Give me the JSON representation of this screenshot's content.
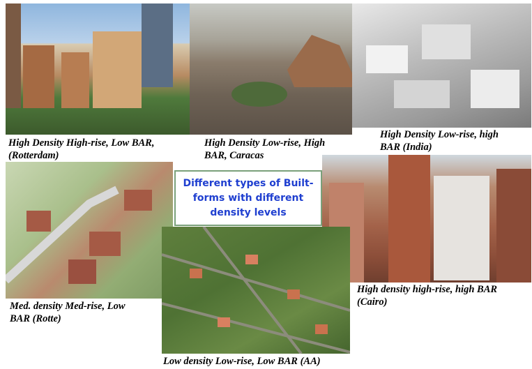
{
  "photos": [
    {
      "caption": [
        "High Density High-rise, Low BAR,",
        "(Rotterdam)"
      ]
    },
    {
      "caption": [
        "High Density Low-rise, High",
        "BAR, Caracas"
      ]
    },
    {
      "caption": [
        "High Density Low-rise, high",
        "BAR (India)"
      ]
    },
    {
      "caption": [
        "Med. density Med-rise, Low",
        "BAR (Rotte)"
      ]
    },
    {
      "caption": [
        "Low density Low-rise, Low BAR (AA)"
      ]
    },
    {
      "caption": [
        "High density high-rise, high BAR",
        "(Cairo)"
      ]
    }
  ],
  "center_box": [
    "Different types of Built-",
    "forms with different",
    "density levels"
  ]
}
